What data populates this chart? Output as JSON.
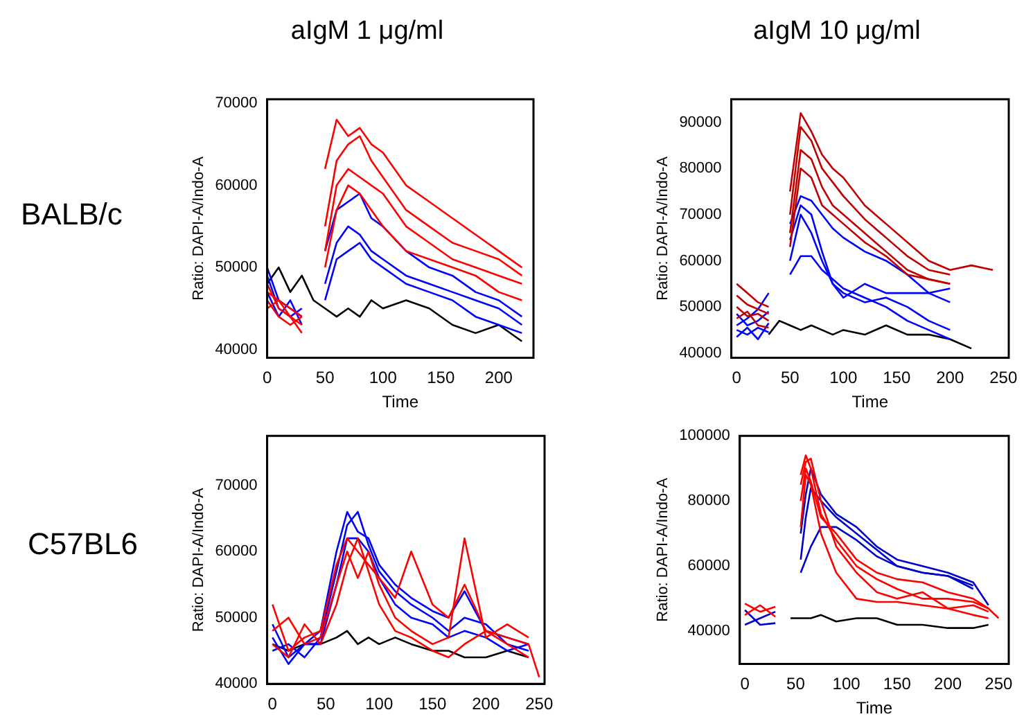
{
  "chart_data": [
    {
      "type": "line",
      "title": "aIgM 1 μg/ml",
      "annotations": [
        "BALB/c"
      ],
      "xlabel": "Time",
      "ylabel": "Ratio: DAPI-A/Indo-A",
      "xlim": [
        0,
        230
      ],
      "xticks": [
        0,
        50,
        100,
        150,
        200
      ],
      "ylim": [
        39000,
        70500
      ],
      "yticks": [
        40000,
        50000,
        60000,
        70000
      ],
      "grid": false,
      "legend": false,
      "marker": "none",
      "line_style": "solid",
      "x": [
        0,
        10,
        20,
        30,
        40,
        50,
        60,
        70,
        80,
        90,
        100,
        120,
        140,
        160,
        180,
        200,
        220
      ],
      "series": [
        {
          "color": "#ff0000",
          "values": [
            48000,
            45000,
            44000,
            43000,
            null,
            62000,
            68000,
            66000,
            67000,
            65000,
            64000,
            60000,
            58000,
            56000,
            54000,
            52000,
            50000
          ]
        },
        {
          "color": "#ff0000",
          "values": [
            47000,
            46000,
            45000,
            44000,
            null,
            55000,
            63000,
            65000,
            66000,
            63000,
            61000,
            57000,
            55000,
            53000,
            52000,
            51000,
            49000
          ]
        },
        {
          "color": "#ff0000",
          "values": [
            46000,
            44000,
            43000,
            44000,
            null,
            52000,
            60000,
            62000,
            61000,
            60000,
            59000,
            55000,
            53000,
            51000,
            50000,
            49000,
            48000
          ]
        },
        {
          "color": "#ff0000",
          "values": [
            45000,
            46000,
            44000,
            42000,
            null,
            50000,
            57000,
            60000,
            59000,
            57000,
            55000,
            52000,
            51000,
            50000,
            49000,
            47000,
            46000
          ]
        },
        {
          "color": "#0000ff",
          "values": [
            50000,
            46000,
            45000,
            44000,
            null,
            52000,
            57000,
            58000,
            59000,
            56000,
            55000,
            52000,
            50000,
            49000,
            47000,
            46000,
            44000
          ]
        },
        {
          "color": "#0000ff",
          "values": [
            47000,
            44000,
            46000,
            43000,
            null,
            48000,
            53000,
            55000,
            54000,
            52000,
            51000,
            49000,
            48000,
            47000,
            46000,
            45000,
            43000
          ]
        },
        {
          "color": "#0000ff",
          "values": [
            49000,
            45000,
            44000,
            45000,
            null,
            46000,
            51000,
            52000,
            53000,
            51000,
            50000,
            48000,
            47000,
            46000,
            44000,
            43000,
            42000
          ]
        },
        {
          "color": "#000000",
          "values": [
            48000,
            50000,
            47000,
            49000,
            46000,
            45000,
            44000,
            45000,
            44000,
            46000,
            45000,
            46000,
            45000,
            43000,
            42000,
            43000,
            41000
          ]
        }
      ]
    },
    {
      "type": "line",
      "title": "aIgM 10 μg/ml",
      "xlabel": "Time",
      "ylabel": "Ratio: DAPI-A/Indo-A",
      "xlim": [
        -5,
        255
      ],
      "xticks": [
        0,
        50,
        100,
        150,
        200,
        250
      ],
      "ylim": [
        39000,
        95000
      ],
      "yticks": [
        40000,
        50000,
        60000,
        70000,
        80000,
        90000
      ],
      "grid": false,
      "legend": false,
      "marker": "none",
      "line_style": "solid",
      "x": [
        0,
        10,
        20,
        30,
        40,
        50,
        60,
        70,
        80,
        90,
        100,
        120,
        140,
        160,
        180,
        200,
        220,
        240
      ],
      "series": [
        {
          "color": "#c00000",
          "values": [
            55000,
            53000,
            51000,
            50000,
            null,
            75000,
            92000,
            88000,
            83000,
            80000,
            78000,
            72000,
            68000,
            64000,
            60000,
            58000,
            59000,
            58000
          ]
        },
        {
          "color": "#c00000",
          "values": [
            52500,
            50500,
            49500,
            48500,
            null,
            70000,
            89000,
            86000,
            80000,
            77000,
            74000,
            69000,
            65000,
            61000,
            58000,
            57000,
            null,
            null
          ]
        },
        {
          "color": "#c00000",
          "values": [
            50000,
            48000,
            48500,
            47000,
            null,
            66000,
            84000,
            82000,
            76000,
            72000,
            70000,
            66000,
            62000,
            58000,
            56000,
            55000,
            null,
            null
          ]
        },
        {
          "color": "#c00000",
          "values": [
            47500,
            49000,
            46000,
            45500,
            null,
            63000,
            80000,
            78000,
            72000,
            70000,
            68000,
            64000,
            61000,
            57000,
            56000,
            55000,
            null,
            null
          ]
        },
        {
          "color": "#0000ff",
          "values": [
            46000,
            47500,
            49500,
            53000,
            null,
            68000,
            74000,
            73000,
            70000,
            67000,
            65000,
            62000,
            60000,
            57000,
            53000,
            51000,
            null,
            null
          ]
        },
        {
          "color": "#0000ff",
          "values": [
            48500,
            46000,
            47000,
            49000,
            null,
            64500,
            72000,
            70000,
            62000,
            55000,
            53000,
            51000,
            52000,
            50000,
            47000,
            45000,
            null,
            null
          ]
        },
        {
          "color": "#0000ff",
          "values": [
            45000,
            44000,
            45500,
            44500,
            null,
            57000,
            61000,
            61000,
            58000,
            56000,
            54000,
            52000,
            50000,
            47000,
            45000,
            43000,
            null,
            null
          ]
        },
        {
          "color": "#0000ff",
          "values": [
            43500,
            45500,
            43000,
            46500,
            null,
            60000,
            70000,
            66000,
            60000,
            55000,
            52000,
            55000,
            53000,
            53000,
            53000,
            54000,
            null,
            null
          ]
        },
        {
          "color": "#000000",
          "values": [
            null,
            null,
            null,
            44000,
            47000,
            46000,
            45000,
            46000,
            45000,
            44000,
            45000,
            44000,
            46000,
            44000,
            44000,
            43000,
            41000,
            null
          ]
        }
      ]
    },
    {
      "type": "line",
      "annotations": [
        "C57BL6"
      ],
      "ylabel": "Ratio: DAPI-A/Indo-A",
      "xlim": [
        -5,
        255
      ],
      "xticks": [
        0,
        50,
        100,
        150,
        200,
        250
      ],
      "ylim": [
        40000,
        77500
      ],
      "yticks": [
        40000,
        50000,
        60000,
        70000
      ],
      "grid": false,
      "legend": false,
      "marker": "none",
      "line_style": "solid",
      "x": [
        0,
        15,
        30,
        45,
        60,
        70,
        80,
        90,
        100,
        115,
        130,
        150,
        165,
        180,
        200,
        220,
        240,
        250
      ],
      "series": [
        {
          "color": "#ff0000",
          "values": [
            52000,
            45000,
            47000,
            48000,
            58000,
            62000,
            60000,
            58000,
            56000,
            53000,
            60000,
            52000,
            50000,
            55000,
            48000,
            47000,
            46000,
            41000
          ]
        },
        {
          "color": "#ff0000",
          "values": [
            48000,
            50000,
            46000,
            47000,
            55000,
            60000,
            56000,
            60000,
            55000,
            50000,
            48000,
            46000,
            47000,
            62000,
            47000,
            49000,
            47000,
            null
          ]
        },
        {
          "color": "#ff0000",
          "values": [
            46000,
            44000,
            49000,
            46000,
            52000,
            58000,
            62000,
            57000,
            52000,
            48000,
            47000,
            45000,
            44000,
            46000,
            48000,
            46000,
            44000,
            null
          ]
        },
        {
          "color": "#0000ff",
          "values": [
            47000,
            43000,
            46000,
            48000,
            60000,
            66000,
            63000,
            62000,
            58000,
            55000,
            53000,
            51000,
            50000,
            54000,
            48000,
            47000,
            46000,
            null
          ]
        },
        {
          "color": "#0000ff",
          "values": [
            45000,
            46000,
            44000,
            47000,
            57000,
            64000,
            66000,
            61000,
            57000,
            54000,
            52000,
            50000,
            48000,
            50000,
            49000,
            46000,
            45000,
            null
          ]
        },
        {
          "color": "#0000ff",
          "values": [
            49000,
            44000,
            46000,
            46000,
            55000,
            62000,
            62000,
            60000,
            56000,
            52000,
            50000,
            49000,
            47000,
            48000,
            47000,
            45000,
            46000,
            null
          ]
        },
        {
          "color": "#000000",
          "values": [
            46000,
            45000,
            46000,
            46000,
            47000,
            48000,
            46000,
            47000,
            46000,
            47000,
            46000,
            45000,
            45000,
            44000,
            44000,
            45000,
            44000,
            null
          ]
        }
      ]
    },
    {
      "type": "line",
      "xlabel": "Time",
      "ylabel": "Ratio: DAPI-A/Indo-A",
      "xlim": [
        -5,
        260
      ],
      "xticks": [
        0,
        50,
        100,
        150,
        200,
        250
      ],
      "ylim": [
        30000,
        100000
      ],
      "yticks": [
        40000,
        60000,
        80000,
        100000
      ],
      "grid": false,
      "legend": false,
      "marker": "none",
      "line_style": "solid",
      "x": [
        0,
        15,
        30,
        45,
        55,
        60,
        65,
        75,
        90,
        110,
        130,
        150,
        175,
        200,
        225,
        240,
        250
      ],
      "series": [
        {
          "color": "#ff0000",
          "values": [
            48500,
            46000,
            47500,
            null,
            88000,
            94000,
            90000,
            76000,
            68000,
            60000,
            56000,
            53000,
            50000,
            50000,
            49000,
            47000,
            44000
          ]
        },
        {
          "color": "#ff0000",
          "values": [
            45000,
            48000,
            44500,
            null,
            85000,
            92000,
            93000,
            80000,
            66000,
            58000,
            52000,
            50000,
            52000,
            47000,
            48000,
            46000,
            null
          ]
        },
        {
          "color": "#ff0000",
          "values": [
            null,
            null,
            null,
            null,
            72000,
            88000,
            85000,
            70000,
            58000,
            50000,
            49000,
            49000,
            48000,
            47000,
            45000,
            44000,
            null
          ]
        },
        {
          "color": "#ff0000",
          "values": [
            null,
            null,
            null,
            null,
            80000,
            90000,
            86000,
            75000,
            70000,
            62000,
            58000,
            56000,
            55000,
            52000,
            50000,
            47000,
            null
          ]
        },
        {
          "color": "#0000cc",
          "values": [
            42000,
            44000,
            46000,
            null,
            70000,
            82000,
            90000,
            82000,
            76000,
            72000,
            66000,
            62000,
            60000,
            58000,
            55000,
            48000,
            null
          ]
        },
        {
          "color": "#0000cc",
          "values": [
            46500,
            42000,
            42500,
            null,
            62000,
            75000,
            84000,
            80000,
            75000,
            70000,
            65000,
            60000,
            58000,
            57000,
            54000,
            null,
            null
          ]
        },
        {
          "color": "#0000cc",
          "values": [
            null,
            null,
            null,
            null,
            58000,
            62000,
            66000,
            72000,
            72000,
            68000,
            63000,
            60000,
            58000,
            57000,
            53000,
            null,
            null
          ]
        },
        {
          "color": "#000000",
          "values": [
            null,
            null,
            null,
            44000,
            44000,
            44000,
            44000,
            45000,
            43000,
            44000,
            44000,
            42000,
            42000,
            41000,
            41000,
            42000,
            null
          ]
        }
      ]
    }
  ]
}
